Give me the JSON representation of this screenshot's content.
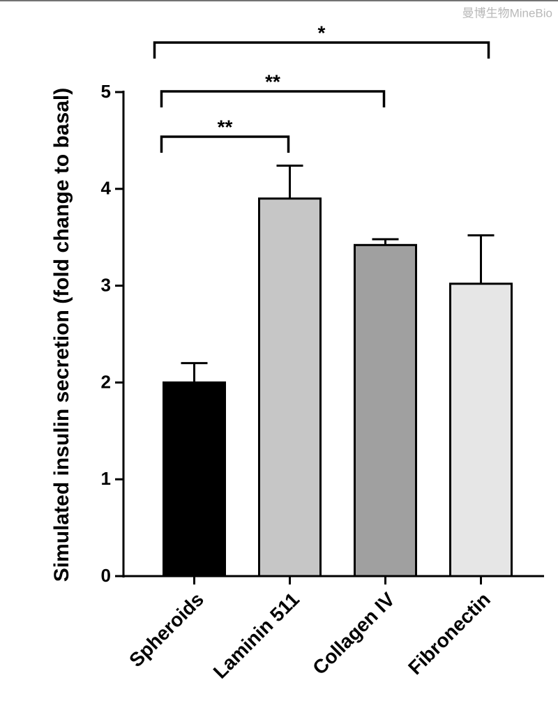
{
  "chart_data": {
    "type": "bar",
    "y_label": "Simulated insulin secretion (fold change to basal)",
    "categories": [
      "Spheroids",
      "Laminin 511",
      "Collagen IV",
      "Fibronectin"
    ],
    "values": [
      2.0,
      3.9,
      3.42,
      3.02
    ],
    "errors": [
      0.2,
      0.34,
      0.06,
      0.5
    ],
    "colors": [
      "#000000",
      "#c6c6c6",
      "#a0a0a0",
      "#e6e6e6"
    ],
    "ylim": [
      0,
      5
    ],
    "yticks": [
      0,
      1,
      2,
      3,
      4,
      5
    ],
    "significance": [
      {
        "between": [
          "Spheroids",
          "Laminin 511"
        ],
        "label": "**"
      },
      {
        "between": [
          "Spheroids",
          "Collagen IV"
        ],
        "label": "**"
      },
      {
        "between": [
          "Spheroids",
          "Fibronectin"
        ],
        "label": "*"
      }
    ],
    "watermark": "曼博生物MineBio"
  }
}
